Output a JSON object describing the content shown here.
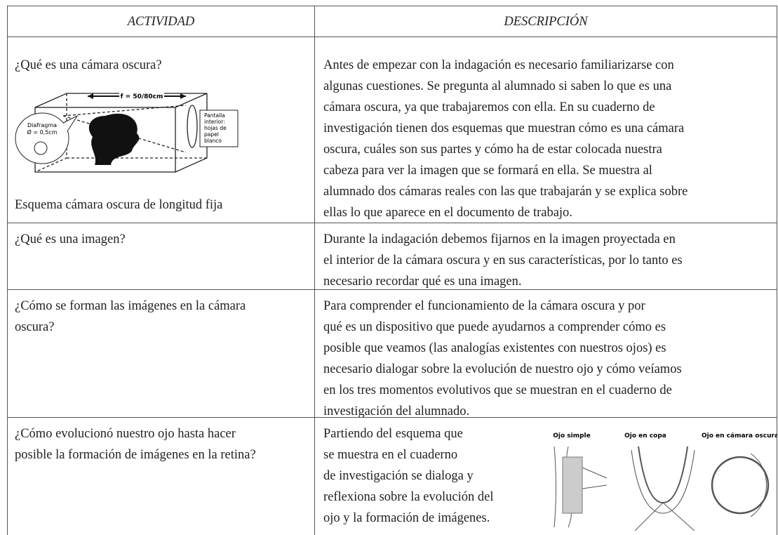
{
  "header": {
    "activity": "ACTIVIDAD",
    "description": "DESCRIPCIÓN"
  },
  "rows": [
    {
      "activity": [
        "¿Qué es una cámara oscura?"
      ],
      "caption": "Esquema cámara oscura de longitud fija",
      "description": [
        "Antes de empezar con la indagación es necesario familiarizarse con",
        "algunas cuestiones. Se pregunta al alumnado si saben lo que es una",
        "cámara oscura, ya que trabajaremos con ella. En su cuaderno de",
        "investigación tienen dos esquemas que muestran cómo es una cámara",
        "oscura, cuáles son sus partes y cómo ha de estar colocada nuestra",
        "cabeza para ver la imagen que se formará en ella. Se muestra al",
        "alumnado dos cámaras reales con las que trabajarán y se explica sobre",
        "ellas lo que aparece en el documento de trabajo."
      ]
    },
    {
      "activity": [
        "¿Qué es una imagen?"
      ],
      "description": [
        "Durante la indagación debemos fijarnos en la imagen proyectada en",
        "el interior de la cámara oscura y en sus características, por lo tanto es",
        "necesario recordar qué es una imagen."
      ]
    },
    {
      "activity": [
        "¿Cómo se forman las imágenes en la cámara",
        "oscura?"
      ],
      "description": [
        "Para comprender el funcionamiento de la cámara oscura y por",
        "qué es un dispositivo que puede ayudarnos a comprender cómo es",
        "posible que veamos (las analogías existentes con nuestros ojos) es",
        "necesario dialogar sobre la evolución de nuestro ojo y cómo veíamos",
        "en los tres momentos evolutivos que se muestran en el cuaderno de",
        "investigación del alumnado."
      ]
    },
    {
      "activity": [
        "¿Cómo evolucionó nuestro ojo hasta hacer",
        "posible la formación de imágenes en la retina?"
      ],
      "description": [
        "Partiendo del esquema que",
        "se muestra en el cuaderno",
        "de investigación se dialoga y",
        "reflexiona sobre la evolución del",
        "ojo y la formación de imágenes."
      ]
    }
  ],
  "camera_diagram": {
    "focal": "f = 50/80cm",
    "aperture": [
      "Diafragma",
      "Ø = 0,5cm"
    ],
    "screen": [
      "Pantalla",
      "interior:",
      "hojas de",
      "papel",
      "blanco"
    ]
  },
  "eye_diagram": {
    "titles": [
      "Ojo simple",
      "Ojo en copa",
      "Ojo en cámara oscura"
    ]
  }
}
